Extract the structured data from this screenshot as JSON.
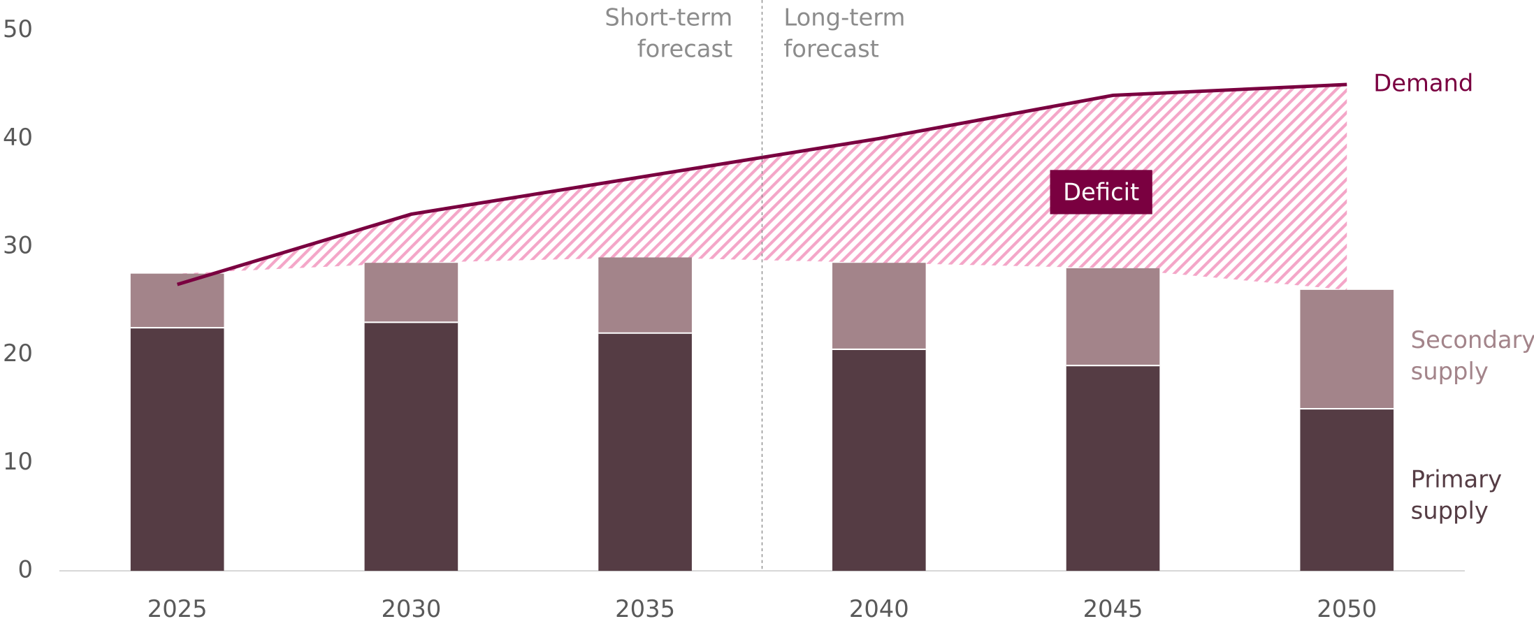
{
  "chart_data": {
    "type": "bar",
    "categories": [
      "2025",
      "2030",
      "2035",
      "2040",
      "2045",
      "2050"
    ],
    "series": [
      {
        "name": "Primary supply",
        "color": "#553c44",
        "values": [
          22.5,
          23,
          22,
          20.5,
          19,
          15
        ]
      },
      {
        "name": "Secondary supply",
        "color": "#a3848a",
        "values": [
          5,
          5.5,
          7,
          8,
          9,
          11
        ]
      },
      {
        "name": "Demand",
        "color": "#7a0040",
        "type": "line",
        "values": [
          26.5,
          33,
          36.5,
          40,
          44,
          45
        ]
      }
    ],
    "ylim": [
      0,
      50
    ],
    "yticks": [
      0,
      10,
      20,
      30,
      40,
      50
    ],
    "annotations": [
      "Short-term forecast",
      "Long-term forecast",
      "Deficit"
    ],
    "deficit_color": "#f4a6c8"
  }
}
